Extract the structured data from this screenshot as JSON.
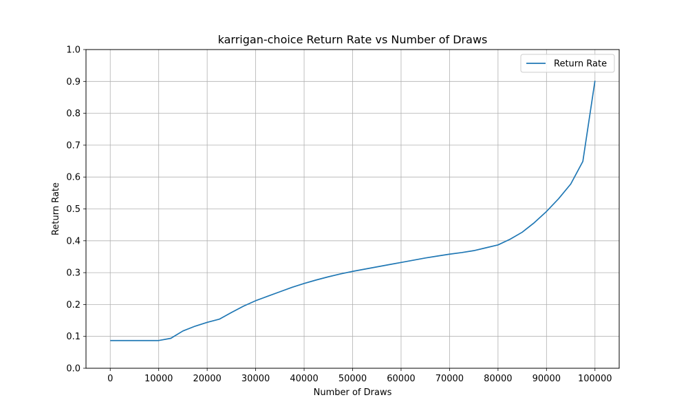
{
  "chart_data": {
    "type": "line",
    "title": "karrigan-choice Return Rate vs Number of Draws",
    "xlabel": "Number of Draws",
    "ylabel": "Return Rate",
    "xlim": [
      -5000,
      105000
    ],
    "ylim": [
      0.0,
      1.0
    ],
    "xticks": [
      0,
      10000,
      20000,
      30000,
      40000,
      50000,
      60000,
      70000,
      80000,
      90000,
      100000
    ],
    "xtick_labels": [
      "0",
      "10000",
      "20000",
      "30000",
      "40000",
      "50000",
      "60000",
      "70000",
      "80000",
      "90000",
      "100000"
    ],
    "yticks": [
      0.0,
      0.1,
      0.2,
      0.3,
      0.4,
      0.5,
      0.6,
      0.7,
      0.8,
      0.9,
      1.0
    ],
    "ytick_labels": [
      "0.0",
      "0.1",
      "0.2",
      "0.3",
      "0.4",
      "0.5",
      "0.6",
      "0.7",
      "0.8",
      "0.9",
      "1.0"
    ],
    "grid": true,
    "legend_position": "top-right",
    "series": [
      {
        "name": "Return Rate",
        "color": "#1f77b4",
        "x": [
          0,
          2500,
          5000,
          7500,
          10000,
          12500,
          15000,
          17500,
          20000,
          22500,
          25000,
          27500,
          30000,
          32500,
          35000,
          37500,
          40000,
          42500,
          45000,
          47500,
          50000,
          52500,
          55000,
          57500,
          60000,
          62500,
          65000,
          67500,
          70000,
          72500,
          75000,
          77500,
          80000,
          82500,
          85000,
          87500,
          90000,
          92500,
          95000,
          97500,
          100000
        ],
        "y": [
          0.087,
          0.087,
          0.087,
          0.087,
          0.087,
          0.094,
          0.117,
          0.132,
          0.144,
          0.154,
          0.175,
          0.195,
          0.212,
          0.226,
          0.24,
          0.254,
          0.266,
          0.277,
          0.287,
          0.296,
          0.304,
          0.311,
          0.318,
          0.325,
          0.332,
          0.339,
          0.346,
          0.352,
          0.358,
          0.363,
          0.369,
          0.378,
          0.387,
          0.405,
          0.427,
          0.457,
          0.492,
          0.532,
          0.578,
          0.649,
          0.902
        ]
      }
    ]
  }
}
